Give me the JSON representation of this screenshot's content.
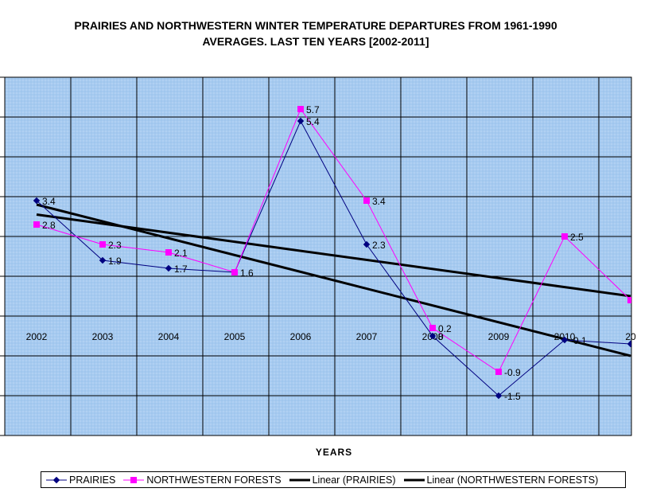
{
  "chart_data": {
    "type": "line",
    "title_lines": [
      "PRAIRIES AND NORTHWESTERN WINTER TEMPERATURE DEPARTURES  FROM 1961-1990",
      "AVERAGES.  LAST TEN YEARS [2002-2011]"
    ],
    "xlabel": "YEARS",
    "ylabel": "",
    "categories": [
      "2002",
      "2003",
      "2004",
      "2005",
      "2006",
      "2007",
      "2008",
      "2009",
      "2010",
      "20"
    ],
    "ylim": [
      -2.5,
      6.5
    ],
    "grid": true,
    "legend_position": "bottom",
    "series": [
      {
        "name": "PRAIRIES",
        "color": "#000080",
        "marker": "diamond",
        "values": [
          3.4,
          1.9,
          1.7,
          1.6,
          5.4,
          2.3,
          0,
          -1.5,
          -0.1,
          -0.2
        ],
        "labels": [
          "3.4",
          "1.9",
          "1.7",
          "",
          "5.4",
          "2.3",
          "0",
          "-1.5",
          "-0.1",
          ""
        ]
      },
      {
        "name": "NORTHWESTERN FORESTS",
        "color": "#ff00ff",
        "marker": "square",
        "values": [
          2.8,
          2.3,
          2.1,
          1.6,
          5.7,
          3.4,
          0.2,
          -0.9,
          2.5,
          0.9
        ],
        "labels": [
          "2.8",
          "2.3",
          "2.1",
          "1.6",
          "5.7",
          "3.4",
          "0.2",
          "-0.9",
          "2.5",
          ""
        ]
      }
    ],
    "trendlines": [
      {
        "name": "Linear (PRAIRIES)",
        "color": "#000000",
        "start": 3.3,
        "end": -0.5
      },
      {
        "name": "Linear (NORTHWESTERN FORESTS)",
        "color": "#000000",
        "start": 3.05,
        "end": 1.0
      }
    ],
    "colors": {
      "plot_background": "#a6caf0",
      "gridline": "#000000"
    }
  }
}
